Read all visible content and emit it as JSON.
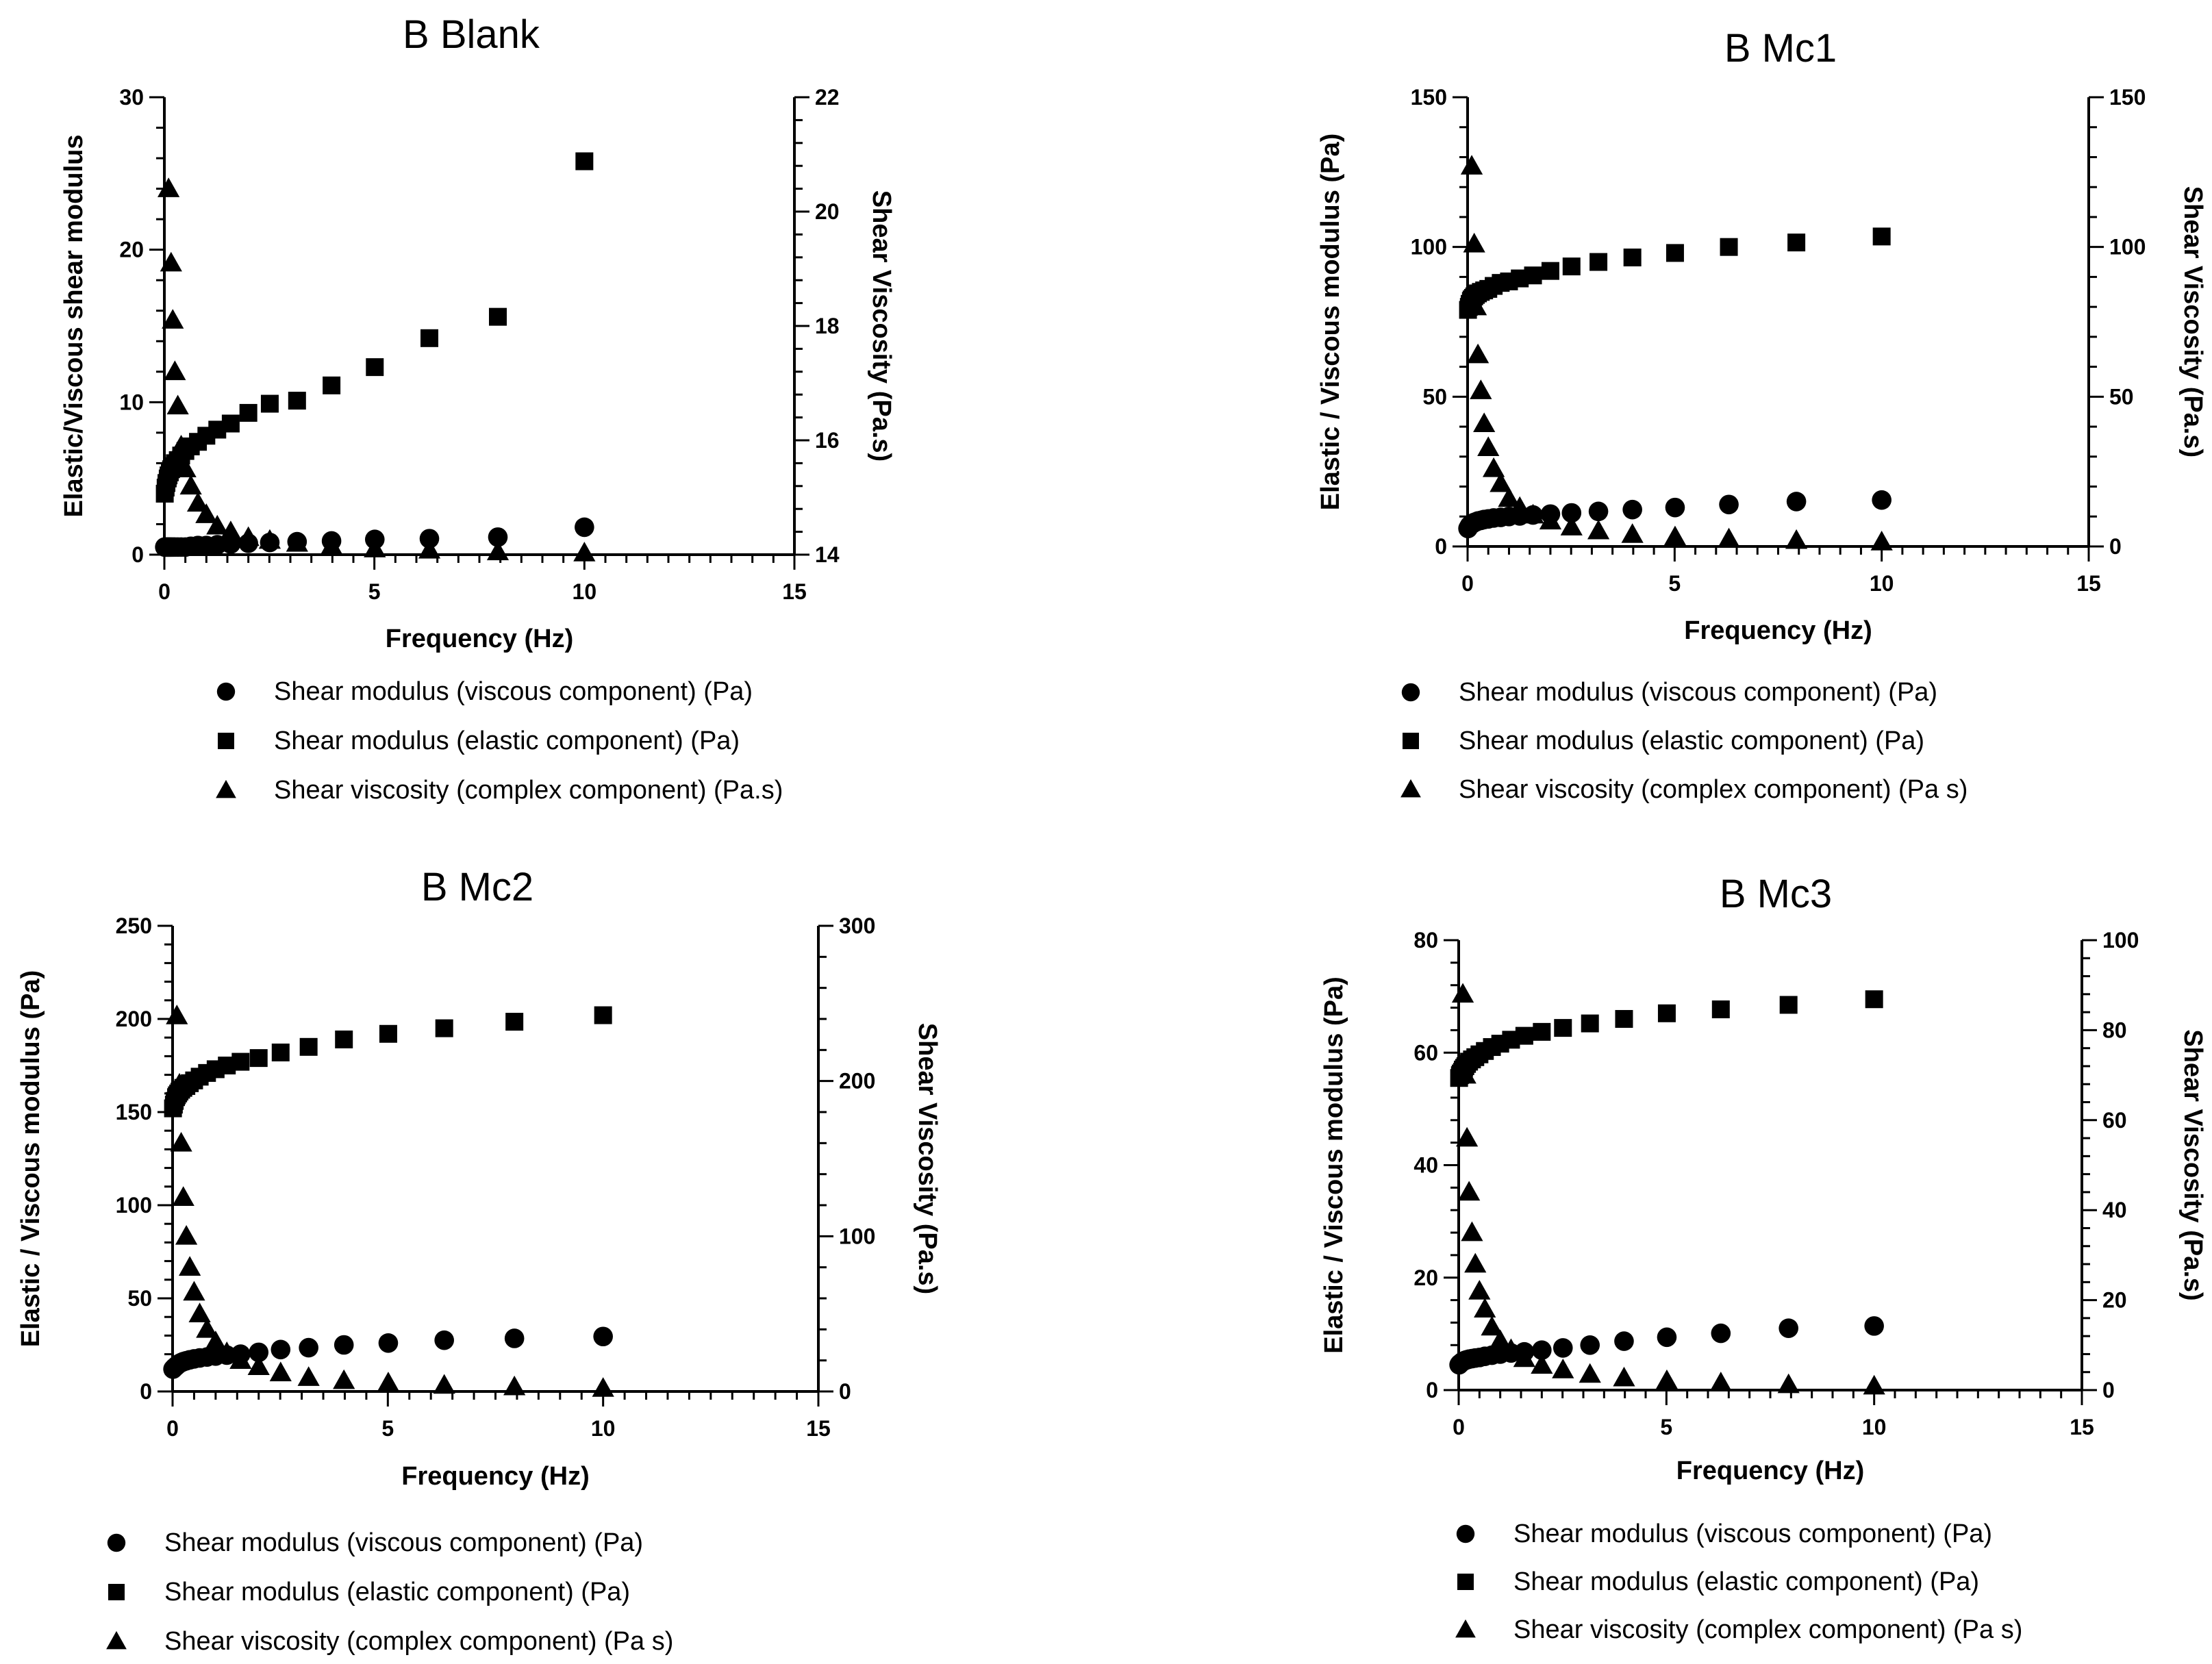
{
  "chart_data": [
    {
      "type": "scatter",
      "title": "B Blank",
      "xlabel": "Frequency (Hz)",
      "ylabel": "Elastic/Viscous shear modulus",
      "y2label": "Shear Viscosity (Pa.s)",
      "xlim": [
        0,
        15
      ],
      "ylim": [
        0,
        30
      ],
      "y2lim": [
        14,
        22
      ],
      "xticks": [
        "0",
        "5",
        "10",
        "15"
      ],
      "yticks": [
        "0",
        "10",
        "20",
        "30"
      ],
      "y2ticks": [
        "14",
        "16",
        "18",
        "20",
        "22"
      ],
      "legend": [
        "Shear modulus (viscous component) (Pa)",
        "Shear modulus (elastic component) (Pa)",
        "Shear viscosity (complex component) (Pa.s)"
      ],
      "x": [
        0.01,
        0.03,
        0.05,
        0.08,
        0.1,
        0.13,
        0.16,
        0.2,
        0.25,
        0.32,
        0.4,
        0.5,
        0.63,
        0.8,
        1.0,
        1.26,
        1.58,
        2.0,
        2.51,
        3.16,
        3.98,
        5.01,
        6.31,
        7.94,
        10.0
      ],
      "series": [
        {
          "name": "Shear modulus (viscous component) (Pa)",
          "marker": "circle",
          "axis": "left",
          "values": [
            0.5,
            0.5,
            0.5,
            0.5,
            0.5,
            0.5,
            0.5,
            0.5,
            0.5,
            0.5,
            0.5,
            0.5,
            0.55,
            0.6,
            0.6,
            0.65,
            0.7,
            0.75,
            0.8,
            0.85,
            0.9,
            1.0,
            1.05,
            1.15,
            1.8
          ]
        },
        {
          "name": "Shear modulus (elastic component) (Pa)",
          "marker": "square",
          "axis": "left",
          "values": [
            4.0,
            4.4,
            4.7,
            5.0,
            5.2,
            5.4,
            5.6,
            5.8,
            6.0,
            6.2,
            6.5,
            6.8,
            7.1,
            7.4,
            7.8,
            8.2,
            8.6,
            9.3,
            9.9,
            10.1,
            11.1,
            12.3,
            14.2,
            15.6,
            25.8
          ]
        },
        {
          "name": "Shear viscosity (complex component) (Pa.s)",
          "marker": "triangle",
          "axis": "right",
          "x": [
            0.1,
            0.16,
            0.2,
            0.25,
            0.32,
            0.4,
            0.5,
            0.63,
            0.8,
            1.0,
            1.26,
            1.58,
            2.0,
            2.51,
            3.16,
            3.98,
            5.01,
            6.31,
            7.94,
            10.0
          ],
          "values": [
            20.4,
            19.1,
            18.1,
            17.2,
            16.6,
            15.9,
            15.5,
            15.2,
            14.9,
            14.7,
            14.5,
            14.4,
            14.3,
            14.25,
            14.2,
            14.15,
            14.1,
            14.08,
            14.05,
            14.03
          ]
        }
      ]
    },
    {
      "type": "scatter",
      "title": "B Mc1",
      "xlabel": "Frequency (Hz)",
      "ylabel": "Elastic / Viscous modulus (Pa)",
      "y2label": "Shear Viscosity (Pa.s)",
      "xlim": [
        0,
        15
      ],
      "ylim": [
        0,
        150
      ],
      "y2lim": [
        0,
        150
      ],
      "xticks": [
        "0",
        "5",
        "10",
        "15"
      ],
      "yticks": [
        "0",
        "50",
        "100",
        "150"
      ],
      "y2ticks": [
        "0",
        "50",
        "100",
        "150"
      ],
      "legend": [
        "Shear modulus (viscous component) (Pa)",
        "Shear modulus (elastic component) (Pa)",
        "Shear viscosity (complex component) (Pa s)"
      ],
      "x": [
        0.01,
        0.03,
        0.05,
        0.08,
        0.1,
        0.13,
        0.16,
        0.2,
        0.25,
        0.32,
        0.4,
        0.5,
        0.63,
        0.8,
        1.0,
        1.26,
        1.58,
        2.0,
        2.51,
        3.16,
        3.98,
        5.01,
        6.31,
        7.94,
        10.0
      ],
      "series": [
        {
          "name": "Shear modulus (viscous component) (Pa)",
          "marker": "circle",
          "axis": "left",
          "values": [
            6,
            6.5,
            7,
            7.2,
            7.5,
            7.7,
            8,
            8.2,
            8.5,
            8.7,
            9,
            9.2,
            9.5,
            9.7,
            10,
            10.2,
            10.5,
            10.8,
            11.2,
            11.7,
            12.3,
            13,
            14,
            15,
            15.5
          ]
        },
        {
          "name": "Shear modulus (elastic component) (Pa)",
          "marker": "square",
          "axis": "left",
          "values": [
            79,
            80,
            81,
            82,
            82.5,
            83,
            83.5,
            84,
            84.5,
            85,
            85.5,
            86,
            87,
            88,
            88.5,
            89.5,
            90.5,
            92,
            93.5,
            95,
            96.5,
            98,
            100,
            101.5,
            103.5
          ]
        },
        {
          "name": "Shear viscosity (complex component) (Pa s)",
          "marker": "triangle",
          "axis": "right",
          "x": [
            0.1,
            0.16,
            0.2,
            0.25,
            0.32,
            0.4,
            0.5,
            0.63,
            0.8,
            1.0,
            1.26,
            1.58,
            2.0,
            2.51,
            3.16,
            3.98,
            5.01,
            6.31,
            7.94,
            10.0
          ],
          "values": [
            127,
            101,
            80,
            64,
            52,
            41,
            33,
            26,
            21,
            16,
            13,
            10.5,
            8.5,
            6.5,
            5.2,
            4,
            3.2,
            2.5,
            2,
            1.5
          ]
        }
      ]
    },
    {
      "type": "scatter",
      "title": "B Mc2",
      "xlabel": "Frequency (Hz)",
      "ylabel": "Elastic / Viscous modulus (Pa)",
      "y2label": "Shear Viscosity (Pa.s)",
      "xlim": [
        0,
        15
      ],
      "ylim": [
        0,
        250
      ],
      "y2lim": [
        0,
        300
      ],
      "xticks": [
        "0",
        "5",
        "10",
        "15"
      ],
      "yticks": [
        "0",
        "50",
        "100",
        "150",
        "200",
        "250"
      ],
      "y2ticks": [
        "0",
        "100",
        "200",
        "300"
      ],
      "legend": [
        "Shear modulus (viscous component) (Pa)",
        "Shear modulus (elastic component) (Pa)",
        "Shear viscosity (complex component) (Pa s)"
      ],
      "x": [
        0.01,
        0.03,
        0.05,
        0.08,
        0.1,
        0.13,
        0.16,
        0.2,
        0.25,
        0.32,
        0.4,
        0.5,
        0.63,
        0.8,
        1.0,
        1.26,
        1.58,
        2.0,
        2.51,
        3.16,
        3.98,
        5.01,
        6.31,
        7.94,
        10.0
      ],
      "series": [
        {
          "name": "Shear modulus (viscous component) (Pa)",
          "marker": "circle",
          "axis": "left",
          "values": [
            12,
            12.5,
            13,
            13.5,
            14,
            14.5,
            15,
            15.5,
            16,
            16.5,
            17,
            17.5,
            18,
            18.5,
            19,
            19.5,
            20,
            21,
            22.5,
            23.5,
            25,
            26,
            27.5,
            28.5,
            29.5
          ]
        },
        {
          "name": "Shear modulus (elastic component) (Pa)",
          "marker": "square",
          "axis": "left",
          "values": [
            152,
            154,
            156,
            158,
            159,
            160,
            161,
            162,
            163,
            164,
            165.5,
            167,
            169,
            171,
            173,
            175,
            177,
            179,
            182,
            185,
            189,
            192,
            195,
            198.5,
            202
          ]
        },
        {
          "name": "Shear viscosity (complex component) (Pa s)",
          "marker": "triangle",
          "axis": "right",
          "x": [
            0.1,
            0.16,
            0.2,
            0.25,
            0.32,
            0.4,
            0.5,
            0.63,
            0.8,
            1.0,
            1.26,
            1.58,
            2.0,
            2.51,
            3.16,
            3.98,
            5.01,
            6.31,
            7.94,
            10.0
          ],
          "values": [
            242,
            198,
            160,
            125,
            100,
            80,
            64,
            50,
            40,
            32,
            25,
            20,
            16,
            12,
            9,
            7,
            5.5,
            4,
            3,
            2
          ]
        }
      ]
    },
    {
      "type": "scatter",
      "title": "B Mc3",
      "xlabel": "Frequency (Hz)",
      "ylabel": "Elastic / Viscous modulus (Pa)",
      "y2label": "Shear Viscosity (Pa.s)",
      "xlim": [
        0,
        15
      ],
      "ylim": [
        0,
        80
      ],
      "y2lim": [
        0,
        100
      ],
      "xticks": [
        "0",
        "5",
        "10",
        "15"
      ],
      "yticks": [
        "0",
        "20",
        "40",
        "60",
        "80"
      ],
      "y2ticks": [
        "0",
        "20",
        "40",
        "60",
        "80",
        "100"
      ],
      "legend": [
        "Shear modulus (viscous component) (Pa)",
        "Shear modulus (elastic component) (Pa)",
        "Shear viscosity (complex component) (Pa s)"
      ],
      "x": [
        0.01,
        0.03,
        0.05,
        0.08,
        0.1,
        0.13,
        0.16,
        0.2,
        0.25,
        0.32,
        0.4,
        0.5,
        0.63,
        0.8,
        1.0,
        1.26,
        1.58,
        2.0,
        2.51,
        3.16,
        3.98,
        5.01,
        6.31,
        7.94,
        10.0
      ],
      "series": [
        {
          "name": "Shear modulus (viscous component) (Pa)",
          "marker": "circle",
          "axis": "left",
          "values": [
            4.5,
            4.7,
            4.8,
            5.0,
            5.1,
            5.2,
            5.3,
            5.4,
            5.5,
            5.6,
            5.7,
            5.8,
            6.0,
            6.2,
            6.4,
            6.6,
            6.8,
            7.1,
            7.5,
            8.0,
            8.7,
            9.4,
            10.1,
            11.0,
            11.4
          ]
        },
        {
          "name": "Shear modulus (elastic component) (Pa)",
          "marker": "square",
          "axis": "left",
          "values": [
            55.5,
            56,
            56.3,
            56.6,
            57,
            57.3,
            57.6,
            58,
            58.4,
            58.8,
            59.2,
            59.7,
            60.3,
            61,
            61.6,
            62.3,
            63,
            63.7,
            64.4,
            65.2,
            66,
            67,
            67.7,
            68.5,
            69.5
          ]
        },
        {
          "name": "Shear viscosity (complex component) (Pa s)",
          "marker": "triangle",
          "axis": "right",
          "x": [
            0.1,
            0.16,
            0.2,
            0.25,
            0.32,
            0.4,
            0.5,
            0.63,
            0.8,
            1.0,
            1.26,
            1.58,
            2.0,
            2.51,
            3.16,
            3.98,
            5.01,
            6.31,
            7.94,
            10.0
          ],
          "values": [
            88,
            70,
            56,
            44,
            35,
            28,
            22,
            18,
            14,
            11,
            9,
            7,
            5.5,
            4.5,
            3.5,
            2.7,
            2.1,
            1.6,
            1.2,
            0.9
          ]
        }
      ]
    }
  ]
}
